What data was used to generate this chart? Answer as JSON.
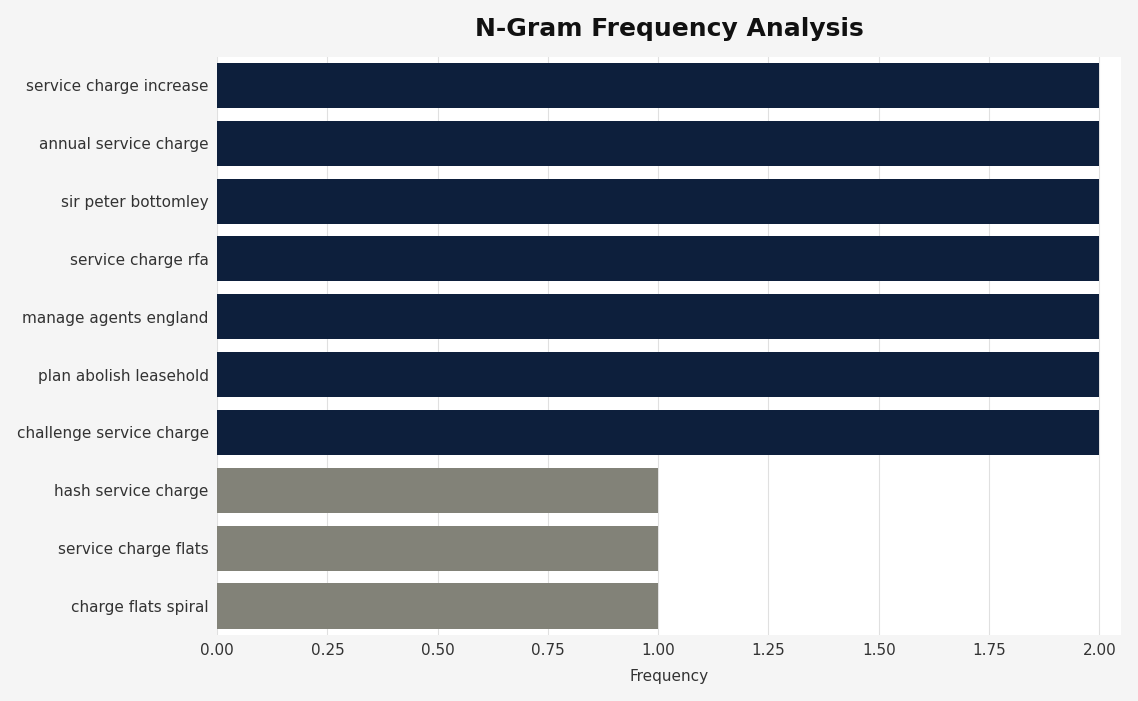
{
  "title": "N-Gram Frequency Analysis",
  "categories": [
    "charge flats spiral",
    "service charge flats",
    "hash service charge",
    "challenge service charge",
    "plan abolish leasehold",
    "manage agents england",
    "service charge rfa",
    "sir peter bottomley",
    "annual service charge",
    "service charge increase"
  ],
  "values": [
    1,
    1,
    1,
    2,
    2,
    2,
    2,
    2,
    2,
    2
  ],
  "colors": [
    "#828278",
    "#828278",
    "#828278",
    "#0d1f3c",
    "#0d1f3c",
    "#0d1f3c",
    "#0d1f3c",
    "#0d1f3c",
    "#0d1f3c",
    "#0d1f3c"
  ],
  "xlabel": "Frequency",
  "xlim": [
    0,
    2.05
  ],
  "xticks": [
    0.0,
    0.25,
    0.5,
    0.75,
    1.0,
    1.25,
    1.5,
    1.75,
    2.0
  ],
  "figure_bg_color": "#f5f5f5",
  "plot_bg_color": "#ffffff",
  "title_fontsize": 18,
  "label_fontsize": 11,
  "tick_fontsize": 11,
  "bar_height": 0.78
}
